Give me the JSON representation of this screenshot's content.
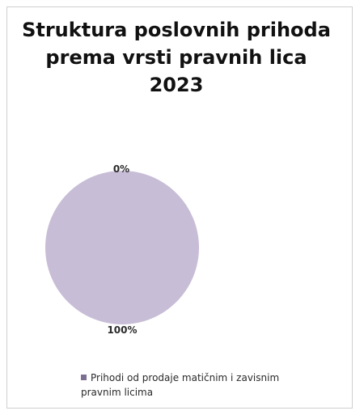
{
  "chart_data": {
    "type": "pie",
    "title": "Struktura poslovnih prihoda prema vrsti pravnih lica 2023",
    "slices": [
      {
        "label": "Prihodi od prodaje matičnim i zavisnim pravnim licima",
        "value": 100,
        "display": "100%",
        "color": "#c8bdd6"
      },
      {
        "label": "",
        "value": 0,
        "display": "0%",
        "color": "#8a7a9e"
      }
    ],
    "legend": {
      "position": "bottom",
      "entries": [
        "Prihodi od prodaje matičnim i zavisnim pravnim licima"
      ]
    }
  },
  "colors": {
    "pie_fill": "#c8bdd6",
    "legend_swatch": "#7d6f92"
  }
}
